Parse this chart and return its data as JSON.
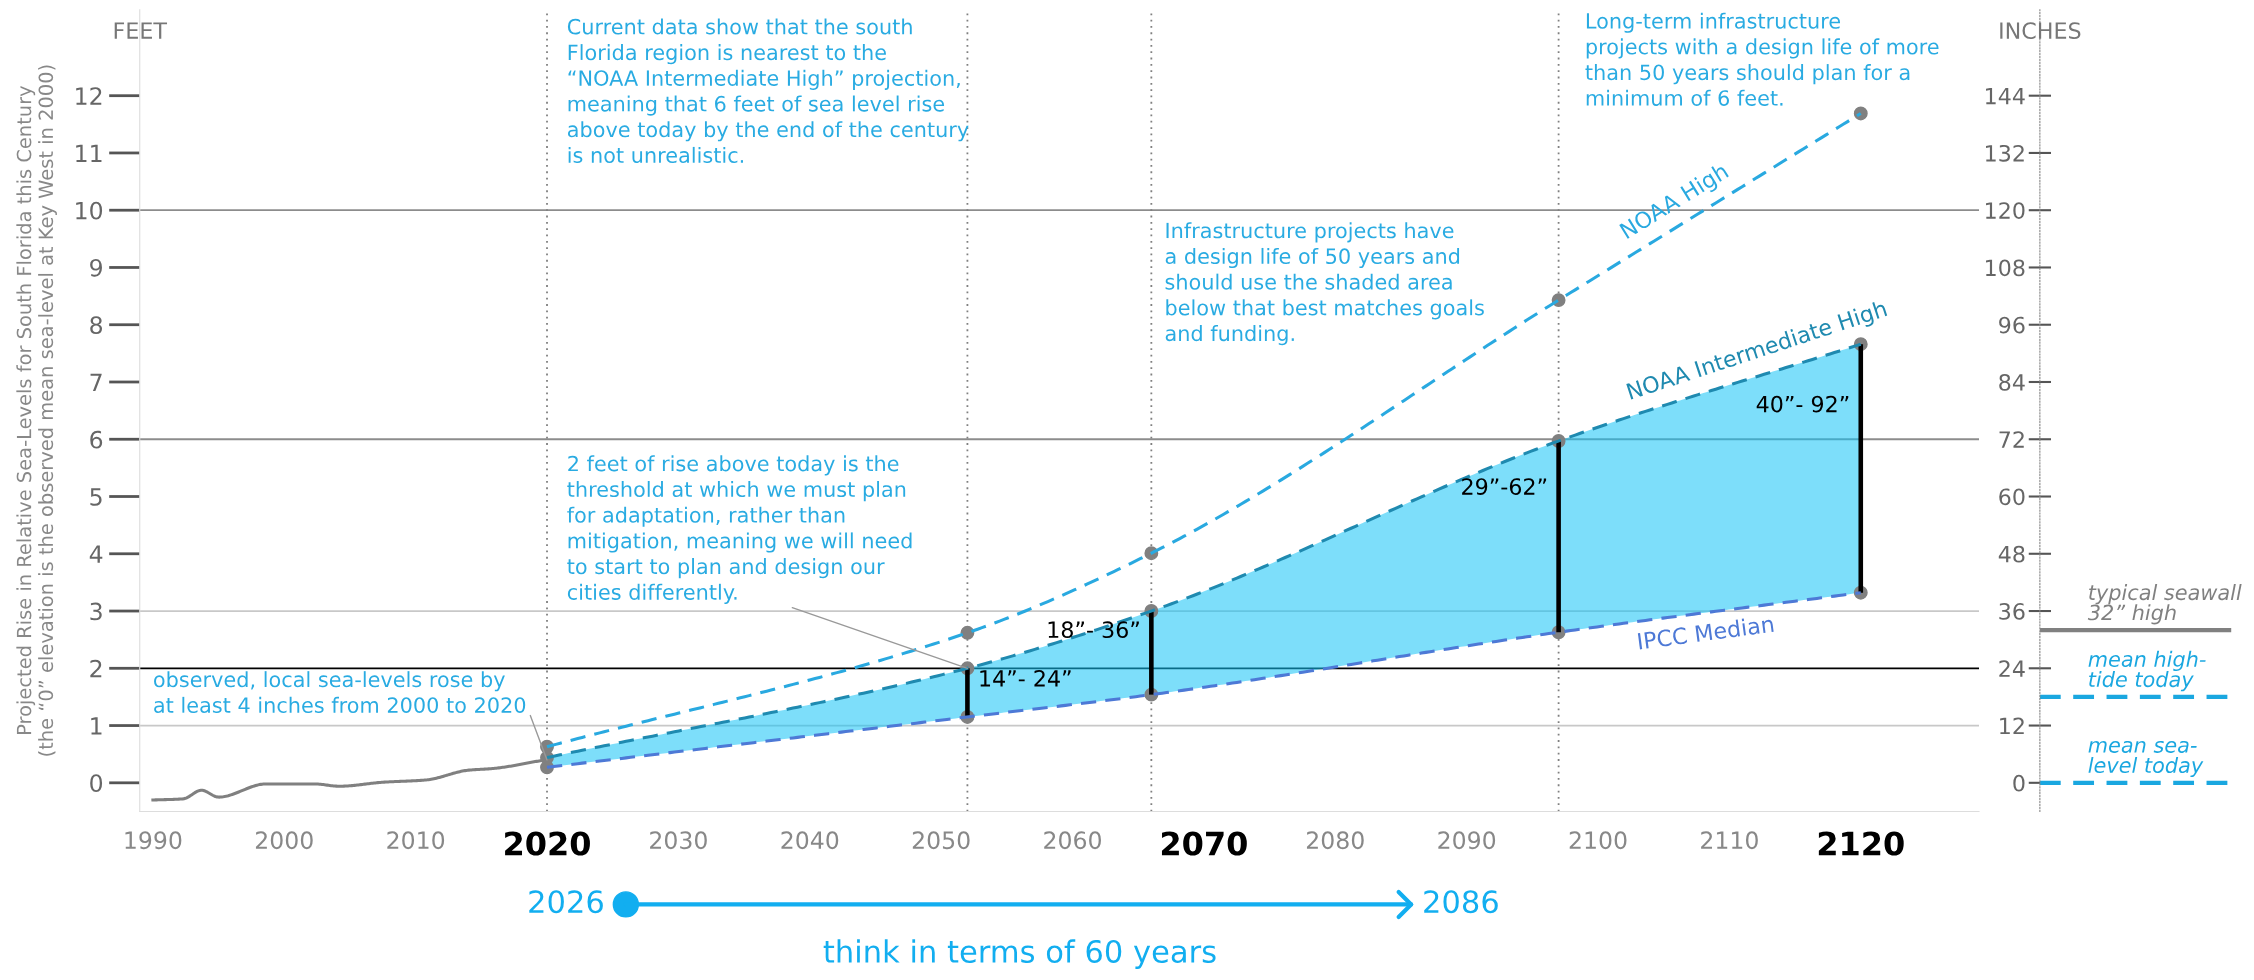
{
  "chart_data": {
    "type": "line",
    "ylabel": "Projected Rise in Relative Sea-Levels for South Florida this Century\n(the “0” elevation is the observed mean sea-level at Key West in 2000)",
    "y2label": "INCHES",
    "annotations": [
      "Current data show that the south\nFlorida region is nearest to the\n“NOAA Intermediate High” projection,\nmeaning that 6 feet of sea level rise\nabove today by the end of the century\nis not unrealistic.",
      {
        "text": "2 feet of rise above today is the\nthreshold at which we must plan\nfor adaptation, rather than\nmitigation, meaning we will need\nto start to plan and design our\ncities differently.",
        "x": 2052,
        "y": 2
      },
      {
        "text": "observed, local sea-levels rose by\nat least 4 inches from 2000 to 2020",
        "x": 2020,
        "y": 0.4
      },
      "Infrastructure projects have\na design life of 50 years and\nshould use the shaded area\nbelow that best matches goals\nand funding.",
      "Long-term infrastructure\nprojects with a design life of more\nthan 50 years should plan for a\nminimum of 6 feet.",
      "FEET",
      "2026",
      "2086",
      "think in terms of 60 years",
      {
        "text": "14”- 24”",
        "x": 2052,
        "y": 1.79
      },
      {
        "text": "18”- 36”",
        "x": 2066,
        "y": 2.64
      },
      {
        "text": "29”-62”",
        "x": 2097,
        "y": 5.14
      },
      {
        "text": "40”- 92”",
        "x": 2120,
        "y": 6.58
      }
    ],
    "xlim": [
      1989,
      2129
    ],
    "xticks": [
      1990,
      2000,
      2010,
      2020,
      2030,
      2040,
      2050,
      2060,
      2070,
      2080,
      2090,
      2100,
      2110,
      2120
    ],
    "ylim": [
      -0.5,
      13.5
    ],
    "yticks": [
      0,
      1,
      2,
      3,
      4,
      5,
      6,
      7,
      8,
      9,
      10,
      11,
      12
    ],
    "y2lim": [
      -6,
      162
    ],
    "y2ticks": [
      0,
      12,
      24,
      36,
      48,
      60,
      72,
      84,
      96,
      108,
      120,
      132,
      144
    ],
    "marker": "circle",
    "ref_lines": [
      {
        "axis": "y",
        "value": 10,
        "color": "#8c8c8c"
      },
      {
        "axis": "y",
        "value": 6,
        "color": "#8c8c8c"
      },
      {
        "axis": "y",
        "value": 3,
        "color": "#c8c8c8"
      },
      {
        "axis": "y",
        "value": 2,
        "color": "#000000"
      },
      {
        "axis": "y",
        "value": 1,
        "color": "#c8c8c8"
      },
      {
        "axis": "x",
        "value": 2020,
        "color": "#808080",
        "line_style": "dotted"
      },
      {
        "axis": "x",
        "value": 2052,
        "color": "#808080",
        "line_style": "dotted"
      },
      {
        "axis": "x",
        "value": 2066,
        "color": "#808080",
        "line_style": "dotted"
      },
      {
        "axis": "x",
        "value": 2097,
        "color": "#808080",
        "line_style": "dotted"
      },
      {
        "axis": "y2",
        "value": 32,
        "label": "typical seawall\n32” high",
        "color": "#808080",
        "line_style": "solid"
      },
      {
        "axis": "y2",
        "value": 18,
        "label": "mean high-\ntide today",
        "color": "#1aa7e0",
        "line_style": "dashed"
      },
      {
        "axis": "y2",
        "value": 0,
        "label": "mean sea-\nlevel today",
        "color": "#1aa7e0",
        "line_style": "dashed"
      }
    ],
    "series": [
      {
        "color": "#808080",
        "marker": "none",
        "line_style": "solid",
        "x": [
          1990,
          1992.3,
          1993.7,
          1995,
          1998.6,
          2002.3,
          2004.2,
          2007.5,
          2010.8,
          2014,
          2015.9,
          2019.6
        ],
        "values": [
          -0.3,
          -0.28,
          -0.13,
          -0.25,
          -0.02,
          -0.02,
          -0.06,
          0.01,
          0.05,
          0.22,
          0.25,
          0.39
        ]
      },
      {
        "name": "NOAA High",
        "color": "#29a9e0",
        "line_style": "dashed",
        "x": [
          2020,
          2052,
          2066,
          2097,
          2120
        ],
        "values": [
          0.63,
          2.62,
          4.01,
          8.43,
          11.69
        ]
      },
      {
        "name": "NOAA Intermediate High",
        "color": "#1f8ab0",
        "line_style": "dashed",
        "x": [
          2020,
          2052,
          2066,
          2097,
          2120
        ],
        "values": [
          0.44,
          2.0,
          3.0,
          5.97,
          7.66
        ],
        "lower": [
          0.27,
          1.15,
          1.54,
          2.63,
          3.32
        ],
        "upper": [
          0.44,
          2.0,
          3.0,
          5.97,
          7.66
        ]
      },
      {
        "name": "IPCC Median",
        "color": "#4d79d6",
        "line_style": "dashed",
        "x": [
          2020,
          2052,
          2066,
          2097,
          2120
        ],
        "values": [
          0.27,
          1.15,
          1.54,
          2.63,
          3.32
        ]
      },
      {
        "type": "bar",
        "color": "#000000",
        "x": [
          2052,
          2066,
          2097,
          2120
        ],
        "base": [
          1.15,
          1.54,
          2.63,
          3.32
        ],
        "values": [
          0.85,
          1.46,
          3.34,
          4.34
        ]
      }
    ]
  }
}
